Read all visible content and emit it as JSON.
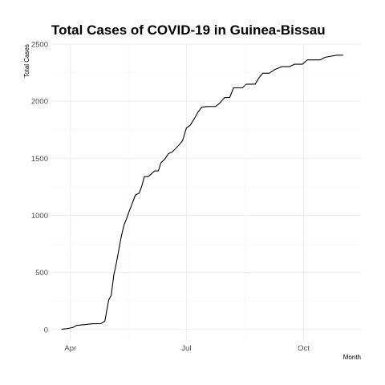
{
  "chart_data": {
    "type": "line",
    "title": "Total Cases of COVID-19 in Guinea-Bissau",
    "xlabel": "Month",
    "ylabel": "Total Cases",
    "x_ticks": [
      {
        "label": "Apr",
        "date": "2020-04-01"
      },
      {
        "label": "Jul",
        "date": "2020-07-01"
      },
      {
        "label": "Oct",
        "date": "2020-10-01"
      }
    ],
    "y_ticks": [
      0,
      500,
      1000,
      1500,
      2000,
      2500
    ],
    "xlim": [
      "2020-03-17",
      "2020-11-15"
    ],
    "ylim": [
      -100,
      2500
    ],
    "grid": true,
    "series": [
      {
        "color": "#000000",
        "points": [
          [
            "2020-03-25",
            2
          ],
          [
            "2020-03-30",
            8
          ],
          [
            "2020-04-03",
            18
          ],
          [
            "2020-04-06",
            36
          ],
          [
            "2020-04-12",
            43
          ],
          [
            "2020-04-18",
            50
          ],
          [
            "2020-04-25",
            52
          ],
          [
            "2020-04-28",
            73
          ],
          [
            "2020-05-01",
            257
          ],
          [
            "2020-05-03",
            300
          ],
          [
            "2020-05-05",
            475
          ],
          [
            "2020-05-07",
            580
          ],
          [
            "2020-05-09",
            700
          ],
          [
            "2020-05-11",
            820
          ],
          [
            "2020-05-13",
            913
          ],
          [
            "2020-05-15",
            969
          ],
          [
            "2020-05-17",
            1032
          ],
          [
            "2020-05-19",
            1090
          ],
          [
            "2020-05-22",
            1178
          ],
          [
            "2020-05-25",
            1195
          ],
          [
            "2020-05-27",
            1256
          ],
          [
            "2020-05-29",
            1339
          ],
          [
            "2020-06-01",
            1339
          ],
          [
            "2020-06-04",
            1368
          ],
          [
            "2020-06-06",
            1389
          ],
          [
            "2020-06-09",
            1389
          ],
          [
            "2020-06-11",
            1460
          ],
          [
            "2020-06-14",
            1492
          ],
          [
            "2020-06-17",
            1541
          ],
          [
            "2020-06-20",
            1556
          ],
          [
            "2020-06-25",
            1614
          ],
          [
            "2020-06-28",
            1654
          ],
          [
            "2020-07-01",
            1765
          ],
          [
            "2020-07-04",
            1790
          ],
          [
            "2020-07-07",
            1842
          ],
          [
            "2020-07-10",
            1902
          ],
          [
            "2020-07-13",
            1947
          ],
          [
            "2020-07-17",
            1953
          ],
          [
            "2020-07-24",
            1954
          ],
          [
            "2020-07-27",
            1981
          ],
          [
            "2020-07-31",
            2032
          ],
          [
            "2020-08-04",
            2032
          ],
          [
            "2020-08-07",
            2117
          ],
          [
            "2020-08-14",
            2117
          ],
          [
            "2020-08-17",
            2149
          ],
          [
            "2020-08-24",
            2149
          ],
          [
            "2020-08-27",
            2205
          ],
          [
            "2020-08-30",
            2245
          ],
          [
            "2020-09-04",
            2245
          ],
          [
            "2020-09-08",
            2275
          ],
          [
            "2020-09-14",
            2303
          ],
          [
            "2020-09-20",
            2303
          ],
          [
            "2020-09-24",
            2324
          ],
          [
            "2020-09-30",
            2324
          ],
          [
            "2020-10-04",
            2362
          ],
          [
            "2020-10-14",
            2362
          ],
          [
            "2020-10-18",
            2385
          ],
          [
            "2020-10-27",
            2403
          ],
          [
            "2020-11-01",
            2403
          ]
        ]
      }
    ]
  }
}
